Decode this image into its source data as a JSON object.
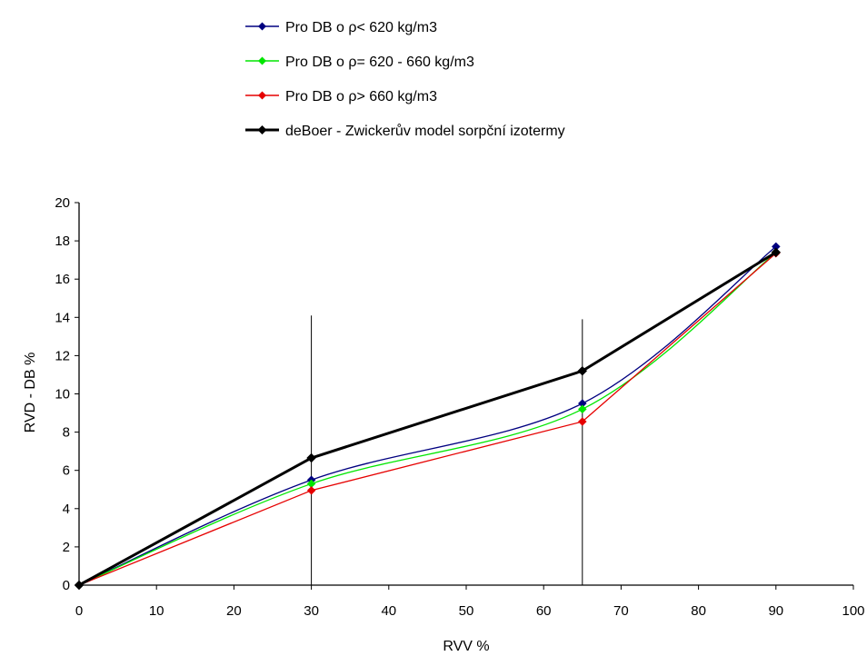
{
  "chart_data": {
    "type": "line",
    "xlabel": "RVV %",
    "ylabel": "RVD - DB %",
    "xlim": [
      0,
      100
    ],
    "ylim": [
      0,
      20
    ],
    "xticks": [
      0,
      10,
      20,
      30,
      40,
      50,
      60,
      70,
      80,
      90,
      100
    ],
    "yticks": [
      0,
      2,
      4,
      6,
      8,
      10,
      12,
      14,
      16,
      18,
      20
    ],
    "grid": false,
    "legend_position": "top",
    "series": [
      {
        "name": "Pro DB o ρ< 620 kg/m3",
        "color": "#000080",
        "marker": "diamond",
        "smooth": true,
        "x": [
          0,
          30,
          65,
          90
        ],
        "y": [
          0,
          5.5,
          9.5,
          17.7
        ]
      },
      {
        "name": "Pro DB o ρ= 620 - 660 kg/m3",
        "color": "#00e600",
        "marker": "diamond",
        "smooth": true,
        "x": [
          0,
          30,
          65,
          90
        ],
        "y": [
          0,
          5.3,
          9.2,
          17.4
        ]
      },
      {
        "name": "Pro DB o ρ> 660 kg/m3",
        "color": "#e60000",
        "marker": "diamond",
        "smooth": false,
        "x": [
          0,
          30,
          65,
          90
        ],
        "y": [
          0,
          4.95,
          8.55,
          17.35
        ]
      },
      {
        "name": "deBoer - Zwickerův model sorpční izotermy",
        "color": "#000000",
        "marker": "diamond",
        "thick": true,
        "smooth": false,
        "x": [
          0,
          30,
          65,
          90
        ],
        "y": [
          0,
          6.65,
          11.2,
          17.4
        ]
      }
    ],
    "reference_lines": [
      {
        "x": 30,
        "y_top": 14.1
      },
      {
        "x": 65,
        "y_top": 13.9
      }
    ]
  }
}
